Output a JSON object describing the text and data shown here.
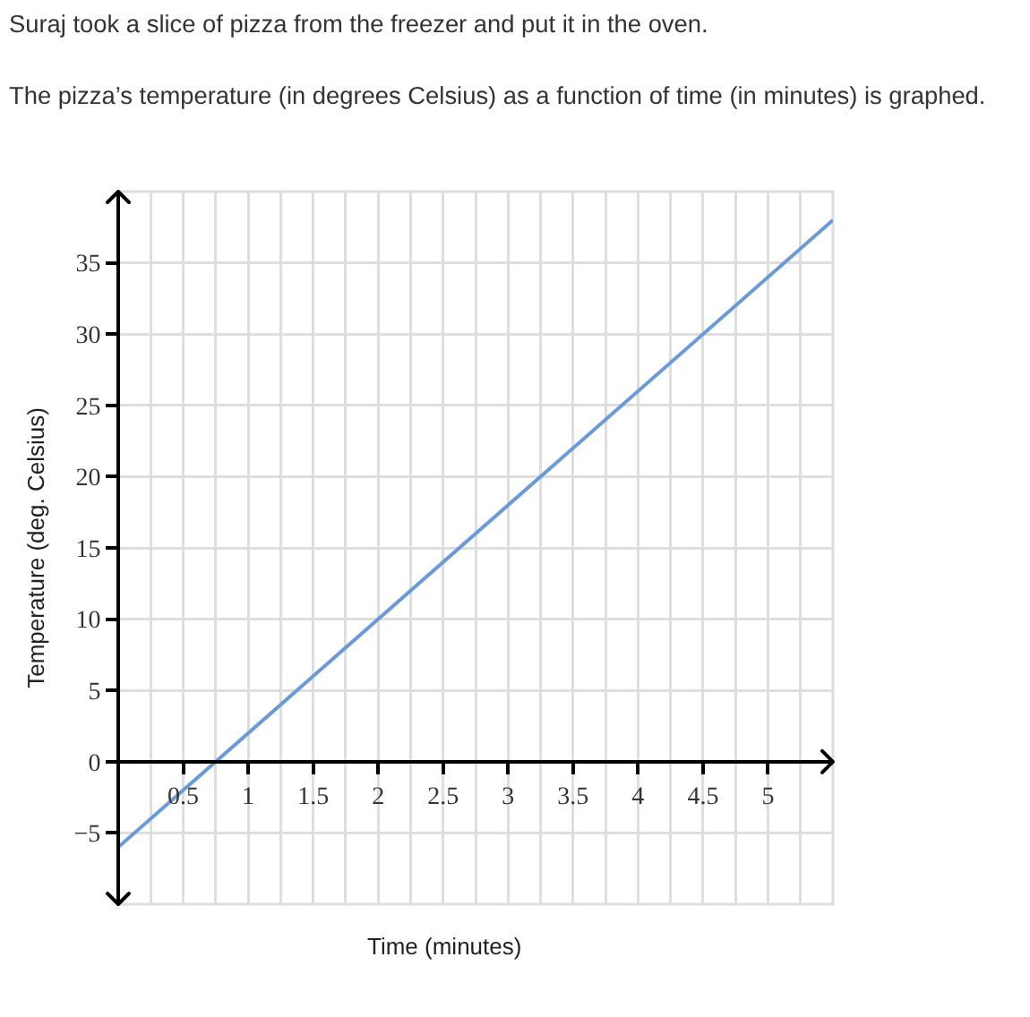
{
  "chart_data": {
    "type": "line",
    "title": "Suraj took a slice of pizza from the freezer and put it in the oven.",
    "subtitle": "The pizza’s temperature (in degrees Celsius) as a function of time (in minutes) is graphed.",
    "xlabel": "Time (minutes)",
    "ylabel": "Temperature (deg. Celsius)",
    "x": [
      0,
      5.5
    ],
    "series": [
      {
        "color": "#6b9ad8",
        "values": [
          -6,
          38
        ]
      }
    ],
    "xlim": [
      0,
      5.5
    ],
    "ylim": [
      -10,
      40
    ],
    "xticks": [
      0.5,
      1,
      1.5,
      2,
      2.5,
      3,
      3.5,
      4,
      4.5,
      5
    ],
    "yticks": [
      {
        "value": -5,
        "label": "−5"
      },
      0,
      5,
      10,
      15,
      20,
      25,
      30,
      35
    ],
    "grid": true,
    "marker": "none",
    "line_style": "solid"
  }
}
